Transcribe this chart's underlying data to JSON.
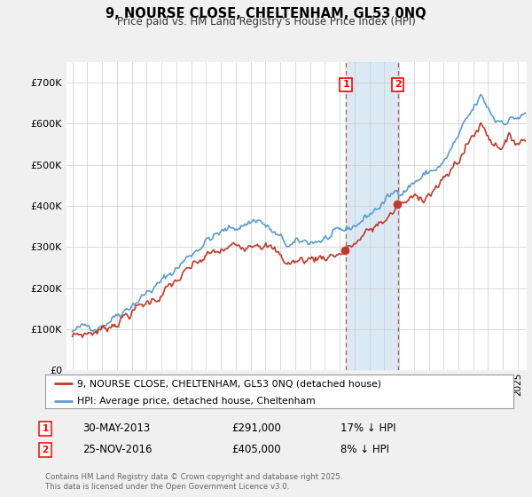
{
  "title": "9, NOURSE CLOSE, CHELTENHAM, GL53 0NQ",
  "subtitle": "Price paid vs. HM Land Registry's House Price Index (HPI)",
  "ylim": [
    0,
    750000
  ],
  "yticks": [
    0,
    100000,
    200000,
    300000,
    400000,
    500000,
    600000,
    700000
  ],
  "ytick_labels": [
    "£0",
    "£100K",
    "£200K",
    "£300K",
    "£400K",
    "£500K",
    "£600K",
    "£700K"
  ],
  "hpi_color": "#5b9bd5",
  "price_color": "#c0392b",
  "sale1_year": 2013.42,
  "sale1_price": 291000,
  "sale1_date_str": "30-MAY-2013",
  "sale1_hpi_pct": "17% ↓ HPI",
  "sale2_year": 2016.92,
  "sale2_price": 405000,
  "sale2_date_str": "25-NOV-2016",
  "sale2_hpi_pct": "8% ↓ HPI",
  "legend_line1": "9, NOURSE CLOSE, CHELTENHAM, GL53 0NQ (detached house)",
  "legend_line2": "HPI: Average price, detached house, Cheltenham",
  "footer": "Contains HM Land Registry data © Crown copyright and database right 2025.\nThis data is licensed under the Open Government Licence v3.0.",
  "bg_color": "#f0f0f0",
  "plot_bg": "#ffffff",
  "shade_color": "#cce0f0",
  "xlim_left": 1994.6,
  "xlim_right": 2025.6
}
